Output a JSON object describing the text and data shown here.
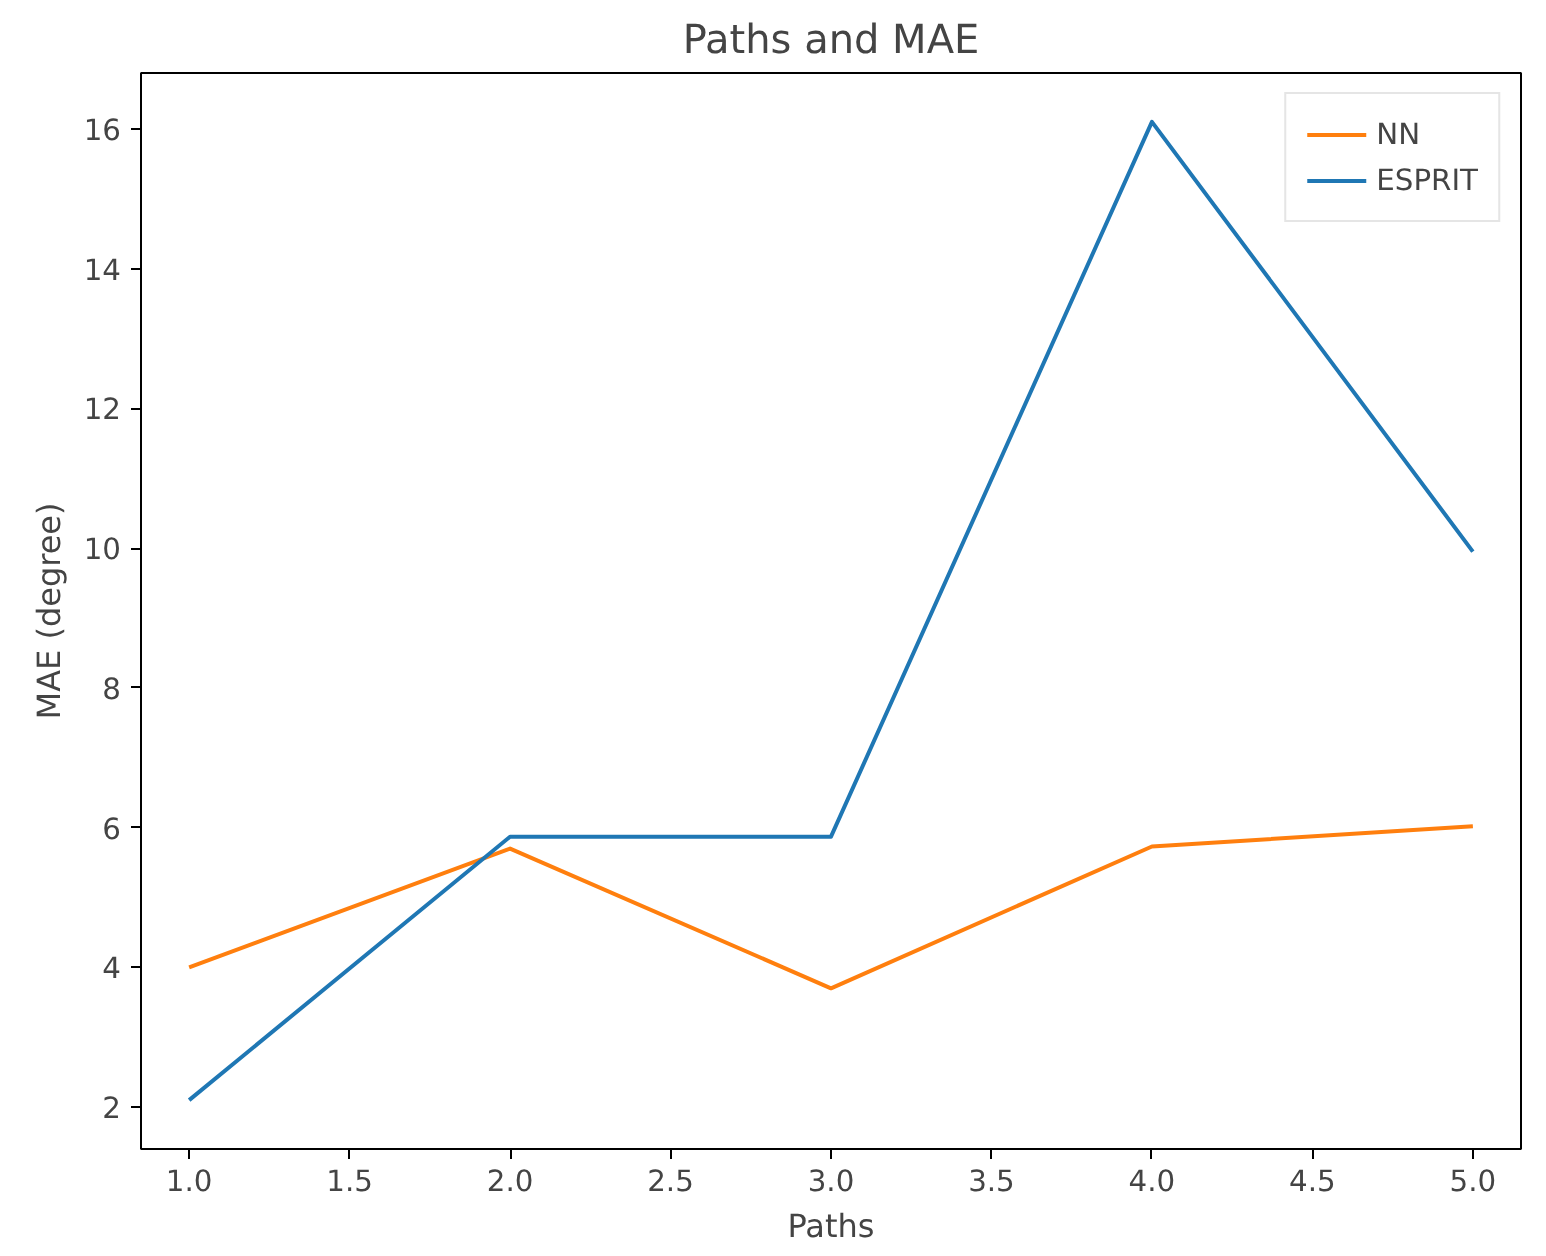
{
  "chart_data": {
    "type": "line",
    "title": "Paths and MAE",
    "xlabel": "Paths",
    "ylabel": "MAE (degree)",
    "x": [
      1,
      2,
      3,
      4,
      5
    ],
    "series": [
      {
        "name": "NN",
        "color": "#ff7f0e",
        "values": [
          4.0,
          5.7,
          3.7,
          5.73,
          6.02
        ]
      },
      {
        "name": "ESPRIT",
        "color": "#1f77b4",
        "values": [
          2.1,
          5.87,
          5.87,
          16.1,
          9.95
        ]
      }
    ],
    "xlim": [
      0.85,
      5.15
    ],
    "ylim": [
      1.4,
      16.8
    ],
    "xticks": [
      {
        "value": 1,
        "label": "1.0"
      },
      {
        "value": 1.5,
        "label": "1.5"
      },
      {
        "value": 2,
        "label": "2.0"
      },
      {
        "value": 2.5,
        "label": "2.5"
      },
      {
        "value": 3,
        "label": "3.0"
      },
      {
        "value": 3.5,
        "label": "3.5"
      },
      {
        "value": 4,
        "label": "4.0"
      },
      {
        "value": 4.5,
        "label": "4.5"
      },
      {
        "value": 5,
        "label": "5.0"
      }
    ],
    "yticks": [
      2,
      4,
      6,
      8,
      10,
      12,
      14,
      16
    ],
    "grid": false,
    "legend": "top right",
    "marker": "none",
    "line_style": "solid"
  }
}
